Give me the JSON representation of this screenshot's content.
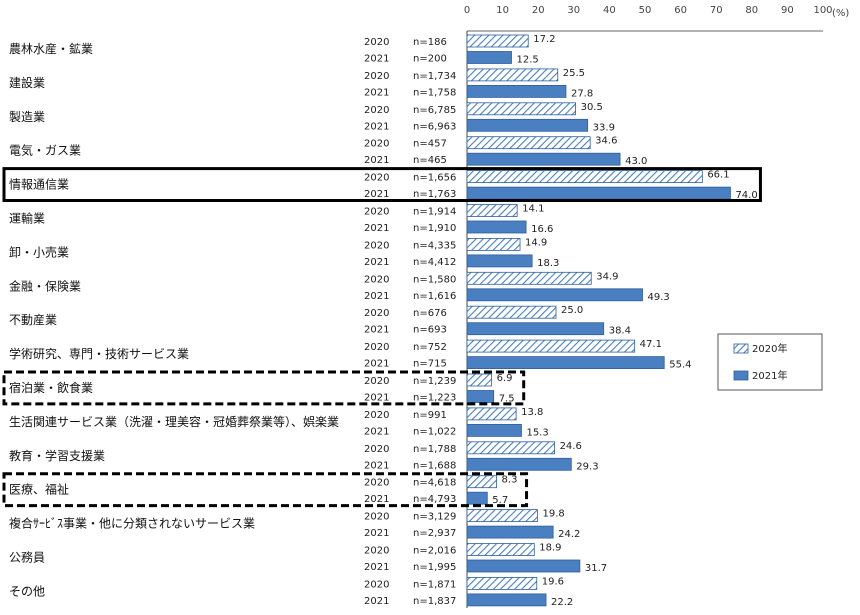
{
  "chart_data": {
    "type": "bar",
    "orientation": "horizontal",
    "unit": "(%)",
    "xlim": [
      0,
      100
    ],
    "xticks": [
      "0",
      "10",
      "20",
      "30",
      "40",
      "50",
      "60",
      "70",
      "80",
      "90",
      "100"
    ],
    "legend": {
      "position": "right",
      "entries": [
        "2020年",
        "2021年"
      ]
    },
    "series": [
      {
        "name": "2020年",
        "fill": "hatched",
        "color": "#4a7fc1"
      },
      {
        "name": "2021年",
        "fill": "solid",
        "color": "#4a7fc1"
      }
    ],
    "categories": [
      {
        "label": "農林水産・鉱業",
        "highlight": "none",
        "rows": [
          {
            "year": "2020",
            "n": "n=186",
            "value": 17.2,
            "label": "17.2"
          },
          {
            "year": "2021",
            "n": "n=200",
            "value": 12.5,
            "label": "12.5"
          }
        ]
      },
      {
        "label": "建設業",
        "highlight": "none",
        "rows": [
          {
            "year": "2020",
            "n": "n=1,734",
            "value": 25.5,
            "label": "25.5"
          },
          {
            "year": "2021",
            "n": "n=1,758",
            "value": 27.8,
            "label": "27.8"
          }
        ]
      },
      {
        "label": "製造業",
        "highlight": "none",
        "rows": [
          {
            "year": "2020",
            "n": "n=6,785",
            "value": 30.5,
            "label": "30.5"
          },
          {
            "year": "2021",
            "n": "n=6,963",
            "value": 33.9,
            "label": "33.9"
          }
        ]
      },
      {
        "label": "電気・ガス業",
        "highlight": "none",
        "rows": [
          {
            "year": "2020",
            "n": "n=457",
            "value": 34.6,
            "label": "34.6"
          },
          {
            "year": "2021",
            "n": "n=465",
            "value": 43.0,
            "label": "43.0"
          }
        ]
      },
      {
        "label": "情報通信業",
        "highlight": "solid",
        "rows": [
          {
            "year": "2020",
            "n": "n=1,656",
            "value": 66.1,
            "label": "66.1"
          },
          {
            "year": "2021",
            "n": "n=1,763",
            "value": 74.0,
            "label": "74.0"
          }
        ]
      },
      {
        "label": "運輸業",
        "highlight": "none",
        "rows": [
          {
            "year": "2020",
            "n": "n=1,914",
            "value": 14.1,
            "label": "14.1"
          },
          {
            "year": "2021",
            "n": "n=1,910",
            "value": 16.6,
            "label": "16.6"
          }
        ]
      },
      {
        "label": "卸・小売業",
        "highlight": "none",
        "rows": [
          {
            "year": "2020",
            "n": "n=4,335",
            "value": 14.9,
            "label": "14.9"
          },
          {
            "year": "2021",
            "n": "n=4,412",
            "value": 18.3,
            "label": "18.3"
          }
        ]
      },
      {
        "label": "金融・保険業",
        "highlight": "none",
        "rows": [
          {
            "year": "2020",
            "n": "n=1,580",
            "value": 34.9,
            "label": "34.9"
          },
          {
            "year": "2021",
            "n": "n=1,616",
            "value": 49.3,
            "label": "49.3"
          }
        ]
      },
      {
        "label": "不動産業",
        "highlight": "none",
        "rows": [
          {
            "year": "2020",
            "n": "n=676",
            "value": 25.0,
            "label": "25.0"
          },
          {
            "year": "2021",
            "n": "n=693",
            "value": 38.4,
            "label": "38.4"
          }
        ]
      },
      {
        "label": "学術研究、専門・技術サービス業",
        "highlight": "none",
        "rows": [
          {
            "year": "2020",
            "n": "n=752",
            "value": 47.1,
            "label": "47.1"
          },
          {
            "year": "2021",
            "n": "n=715",
            "value": 55.4,
            "label": "55.4"
          }
        ]
      },
      {
        "label": "宿泊業・飲食業",
        "highlight": "dashed",
        "rows": [
          {
            "year": "2020",
            "n": "n=1,239",
            "value": 6.9,
            "label": "6.9"
          },
          {
            "year": "2021",
            "n": "n=1,223",
            "value": 7.5,
            "label": "7.5"
          }
        ]
      },
      {
        "label": "生活関連サービス業（洗濯・理美容・冠婚葬祭業等）、娯楽業",
        "highlight": "none",
        "rows": [
          {
            "year": "2020",
            "n": "n=991",
            "value": 13.8,
            "label": "13.8"
          },
          {
            "year": "2021",
            "n": "n=1,022",
            "value": 15.3,
            "label": "15.3"
          }
        ]
      },
      {
        "label": "教育・学習支援業",
        "highlight": "none",
        "rows": [
          {
            "year": "2020",
            "n": "n=1,788",
            "value": 24.6,
            "label": "24.6"
          },
          {
            "year": "2021",
            "n": "n=1,688",
            "value": 29.3,
            "label": "29.3"
          }
        ]
      },
      {
        "label": "医療、福祉",
        "highlight": "dashed",
        "rows": [
          {
            "year": "2020",
            "n": "n=4,618",
            "value": 8.3,
            "label": "8.3"
          },
          {
            "year": "2021",
            "n": "n=4,793",
            "value": 5.7,
            "label": "5.7"
          }
        ]
      },
      {
        "label": "複合ｻｰﾋﾞｽ事業・他に分類されないサービス業",
        "highlight": "none",
        "rows": [
          {
            "year": "2020",
            "n": "n=3,129",
            "value": 19.8,
            "label": "19.8"
          },
          {
            "year": "2021",
            "n": "n=2,937",
            "value": 24.2,
            "label": "24.2"
          }
        ]
      },
      {
        "label": "公務員",
        "highlight": "none",
        "rows": [
          {
            "year": "2020",
            "n": "n=2,016",
            "value": 18.9,
            "label": "18.9"
          },
          {
            "year": "2021",
            "n": "n=1,995",
            "value": 31.7,
            "label": "31.7"
          }
        ]
      },
      {
        "label": "その他",
        "highlight": "none",
        "rows": [
          {
            "year": "2020",
            "n": "n=1,871",
            "value": 19.6,
            "label": "19.6"
          },
          {
            "year": "2021",
            "n": "n=1,837",
            "value": 22.2,
            "label": "22.2"
          }
        ]
      }
    ]
  }
}
